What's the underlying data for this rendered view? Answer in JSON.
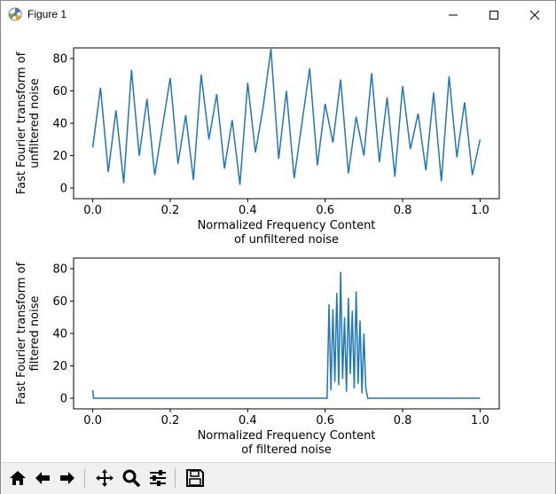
{
  "window": {
    "title": "Figure 1"
  },
  "toolbar": {
    "buttons": [
      {
        "name": "home-icon",
        "icon": "home"
      },
      {
        "name": "back-icon",
        "icon": "arrow-left"
      },
      {
        "name": "forward-icon",
        "icon": "arrow-right"
      },
      {
        "name": "pan-icon",
        "icon": "move"
      },
      {
        "name": "zoom-icon",
        "icon": "magnifier"
      },
      {
        "name": "configure-subplots-icon",
        "icon": "sliders"
      },
      {
        "name": "save-icon",
        "icon": "floppy-disk"
      }
    ]
  },
  "colors": {
    "line": "#1f77b4"
  },
  "chart_data": [
    {
      "type": "line",
      "xlabel": "Normalized Frequency Content\nof unfiltered noise",
      "ylabel": "Fast Fourier transform of\nunfiltered noise",
      "xlim": [
        0.0,
        1.0
      ],
      "ylim": [
        0,
        80
      ],
      "xticks": [
        "0.0",
        "0.2",
        "0.4",
        "0.6",
        "0.8",
        "1.0"
      ],
      "yticks": [
        "0",
        "20",
        "40",
        "60",
        "80"
      ],
      "grid": false,
      "series": [
        {
          "x": [
            0.0,
            0.02,
            0.04,
            0.06,
            0.08,
            0.1,
            0.12,
            0.14,
            0.16,
            0.18,
            0.2,
            0.22,
            0.24,
            0.26,
            0.28,
            0.3,
            0.32,
            0.34,
            0.36,
            0.38,
            0.4,
            0.42,
            0.44,
            0.46,
            0.48,
            0.5,
            0.52,
            0.54,
            0.56,
            0.58,
            0.6,
            0.62,
            0.64,
            0.66,
            0.68,
            0.7,
            0.72,
            0.74,
            0.76,
            0.78,
            0.8,
            0.82,
            0.84,
            0.86,
            0.88,
            0.9,
            0.92,
            0.94,
            0.96,
            0.98,
            1.0
          ],
          "y": [
            25,
            62,
            10,
            48,
            3,
            73,
            20,
            55,
            8,
            38,
            68,
            15,
            45,
            5,
            70,
            30,
            58,
            12,
            42,
            2,
            65,
            22,
            50,
            86,
            18,
            60,
            6,
            40,
            74,
            14,
            52,
            28,
            67,
            9,
            44,
            20,
            71,
            16,
            56,
            7,
            63,
            24,
            46,
            11,
            59,
            4,
            69,
            19,
            53,
            8,
            30
          ]
        }
      ]
    },
    {
      "type": "line",
      "xlabel": "Normalized Frequency Content\nof filtered noise",
      "ylabel": "Fast Fourier transform of\nfiltered noise",
      "xlim": [
        0.0,
        1.0
      ],
      "ylim": [
        0,
        80
      ],
      "xticks": [
        "0.0",
        "0.2",
        "0.4",
        "0.6",
        "0.8",
        "1.0"
      ],
      "yticks": [
        "0",
        "20",
        "40",
        "60",
        "80"
      ],
      "grid": false,
      "series": [
        {
          "x": [
            0.0,
            0.002,
            0.004,
            0.05,
            0.1,
            0.2,
            0.3,
            0.4,
            0.5,
            0.58,
            0.6,
            0.605,
            0.61,
            0.615,
            0.62,
            0.625,
            0.63,
            0.635,
            0.64,
            0.645,
            0.65,
            0.655,
            0.66,
            0.665,
            0.67,
            0.675,
            0.68,
            0.685,
            0.69,
            0.695,
            0.7,
            0.705,
            0.71,
            0.72,
            0.8,
            0.9,
            1.0
          ],
          "y": [
            5,
            0,
            0,
            0,
            0,
            0,
            0,
            0,
            0,
            0,
            0,
            0,
            58,
            5,
            55,
            10,
            65,
            8,
            78,
            12,
            50,
            4,
            62,
            15,
            54,
            6,
            66,
            9,
            48,
            3,
            40,
            6,
            0,
            0,
            0,
            0,
            0
          ]
        }
      ]
    }
  ]
}
